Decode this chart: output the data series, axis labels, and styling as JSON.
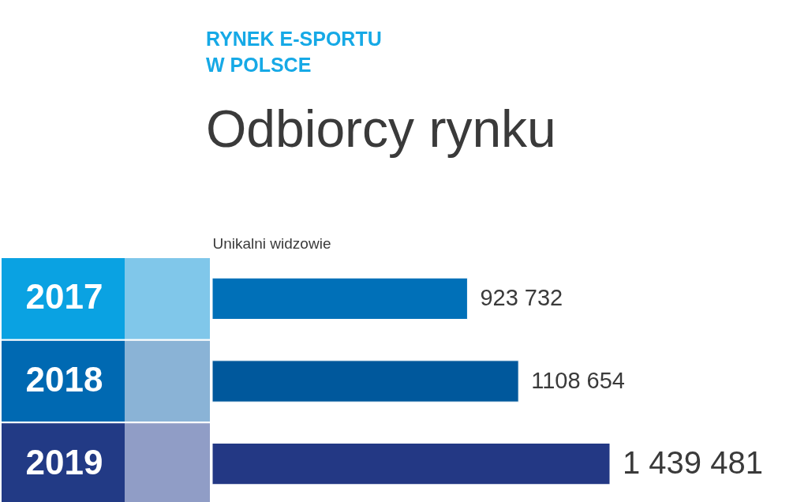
{
  "chart_data": {
    "type": "bar",
    "orientation": "horizontal",
    "title": "RYNEK E-SPORTU W POLSCE",
    "subtitle": "Odbiorcy rynku",
    "xlabel": "Unikalni widzowie",
    "categories": [
      "2017",
      "2018",
      "2019"
    ],
    "values": [
      923732,
      1108654,
      1439481
    ],
    "colors": [
      "#0070b8",
      "#00589c",
      "#233884"
    ],
    "value_labels": [
      "923 732",
      "1108 654",
      "1 439 481"
    ],
    "tick_labels": "y"
  }
}
